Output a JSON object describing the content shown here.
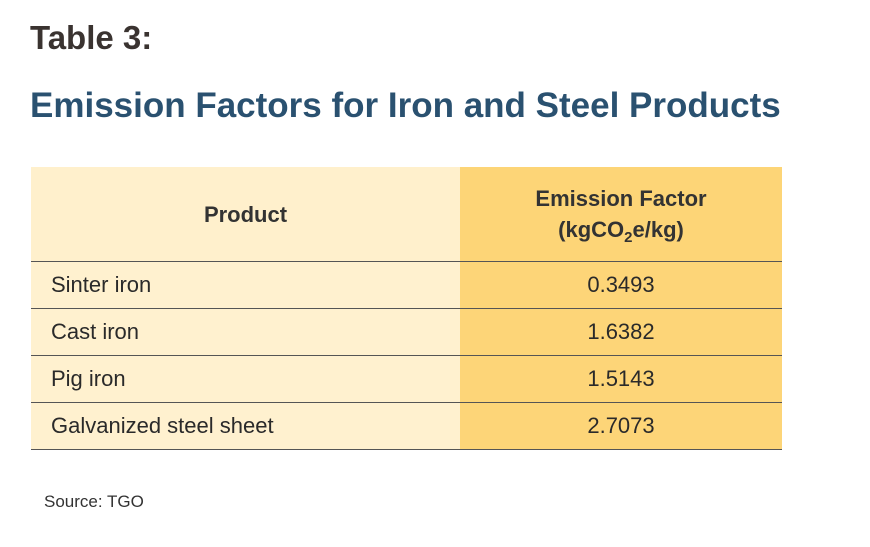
{
  "table_label": "Table 3:",
  "title": "Emission Factors for Iron and Steel Products",
  "table": {
    "headers": {
      "product": "Product",
      "factor_line1": "Emission Factor",
      "factor_unit_prefix": "(kgCO",
      "factor_unit_sub": "2",
      "factor_unit_suffix": "e/kg)"
    },
    "rows": [
      {
        "product": "Sinter iron",
        "factor": "0.3493"
      },
      {
        "product": "Cast iron",
        "factor": "1.6382"
      },
      {
        "product": "Pig iron",
        "factor": "1.5143"
      },
      {
        "product": "Galvanized steel sheet",
        "factor": "2.7073"
      }
    ]
  },
  "source": "Source: TGO",
  "colors": {
    "title": "#2a5170",
    "table_label": "#3a3330",
    "product_column_bg": "#fff1cf",
    "factor_column_bg": "#fdd578"
  }
}
